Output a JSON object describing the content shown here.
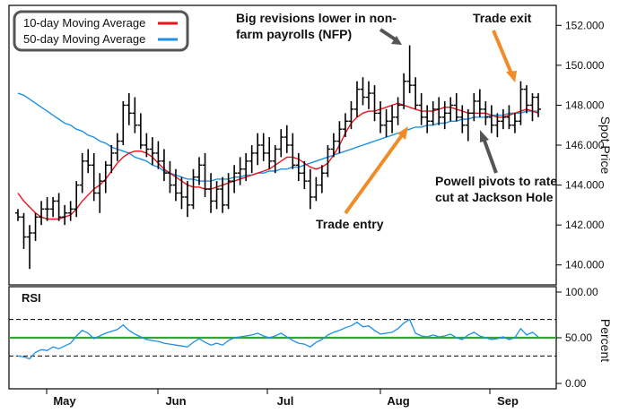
{
  "chart_data": [
    {
      "type": "ohlc",
      "ylabel": "Spot Price",
      "ylim": [
        139,
        153
      ],
      "yticks": [
        140,
        142,
        144,
        146,
        148,
        150,
        152
      ],
      "ytick_labels": [
        "140.000",
        "142.000",
        "144.000",
        "146.000",
        "148.000",
        "150.000",
        "152.000"
      ],
      "x_months": [
        "May",
        "Jun",
        "Jul",
        "Aug",
        "Sep"
      ],
      "legend": [
        {
          "label": "10-day Moving Average",
          "color": "#e8141c"
        },
        {
          "label": "50-day Moving Average",
          "color": "#1e90e8"
        }
      ],
      "legend_position": "top-left",
      "bar_color": "#000000",
      "series_ohlc": [
        [
          142.6,
          142.8,
          142.2,
          142.4
        ],
        [
          142.4,
          142.6,
          140.8,
          141.4
        ],
        [
          141.4,
          142.0,
          139.8,
          141.6
        ],
        [
          141.6,
          142.6,
          141.2,
          142.4
        ],
        [
          142.4,
          143.2,
          142.0,
          142.8
        ],
        [
          142.8,
          143.4,
          142.2,
          142.8
        ],
        [
          142.8,
          143.4,
          142.4,
          143.2
        ],
        [
          143.2,
          143.6,
          142.2,
          142.4
        ],
        [
          142.4,
          143.0,
          142.0,
          142.6
        ],
        [
          142.6,
          143.2,
          142.2,
          142.8
        ],
        [
          142.8,
          144.2,
          142.4,
          144.0
        ],
        [
          144.0,
          145.6,
          143.6,
          145.2
        ],
        [
          145.2,
          145.8,
          144.6,
          145.0
        ],
        [
          145.0,
          145.6,
          143.2,
          143.6
        ],
        [
          143.6,
          144.6,
          142.6,
          144.2
        ],
        [
          144.2,
          145.2,
          143.6,
          145.0
        ],
        [
          145.0,
          146.0,
          144.6,
          145.6
        ],
        [
          145.6,
          146.6,
          145.2,
          146.2
        ],
        [
          146.2,
          148.2,
          146.0,
          148.0
        ],
        [
          148.0,
          148.6,
          147.0,
          147.6
        ],
        [
          147.6,
          148.4,
          146.6,
          147.0
        ],
        [
          147.0,
          147.6,
          145.8,
          146.0
        ],
        [
          146.0,
          146.6,
          145.4,
          145.8
        ],
        [
          145.8,
          146.4,
          145.0,
          145.6
        ],
        [
          145.6,
          146.2,
          144.8,
          145.2
        ],
        [
          145.2,
          145.8,
          144.2,
          144.6
        ],
        [
          144.6,
          145.2,
          143.6,
          144.0
        ],
        [
          144.0,
          144.8,
          143.2,
          143.6
        ],
        [
          143.6,
          144.4,
          142.8,
          143.4
        ],
        [
          143.4,
          144.2,
          142.4,
          143.0
        ],
        [
          143.0,
          144.8,
          142.8,
          144.4
        ],
        [
          144.4,
          145.4,
          144.0,
          145.0
        ],
        [
          145.0,
          145.6,
          143.4,
          143.8
        ],
        [
          143.8,
          144.6,
          142.6,
          143.2
        ],
        [
          143.2,
          144.2,
          142.8,
          143.8
        ],
        [
          143.8,
          144.4,
          142.6,
          143.0
        ],
        [
          143.0,
          144.6,
          142.8,
          144.2
        ],
        [
          144.2,
          145.0,
          143.6,
          144.6
        ],
        [
          144.6,
          145.4,
          144.0,
          144.8
        ],
        [
          144.8,
          145.6,
          144.2,
          145.2
        ],
        [
          145.2,
          146.0,
          144.6,
          145.6
        ],
        [
          145.6,
          146.6,
          145.0,
          146.0
        ],
        [
          146.0,
          146.6,
          145.2,
          145.6
        ],
        [
          145.6,
          146.4,
          144.8,
          145.2
        ],
        [
          145.2,
          146.0,
          144.6,
          145.8
        ],
        [
          145.8,
          146.8,
          145.4,
          146.4
        ],
        [
          146.4,
          147.0,
          145.6,
          146.0
        ],
        [
          146.0,
          146.6,
          144.8,
          145.0
        ],
        [
          145.0,
          145.6,
          144.2,
          144.6
        ],
        [
          144.6,
          145.2,
          143.8,
          144.2
        ],
        [
          144.2,
          144.8,
          142.8,
          143.4
        ],
        [
          143.4,
          144.4,
          143.2,
          144.0
        ],
        [
          144.0,
          145.0,
          143.6,
          144.6
        ],
        [
          144.6,
          146.0,
          144.4,
          145.8
        ],
        [
          145.8,
          146.6,
          145.4,
          146.2
        ],
        [
          146.2,
          147.2,
          145.6,
          146.8
        ],
        [
          146.8,
          147.6,
          146.4,
          147.2
        ],
        [
          147.2,
          148.2,
          146.8,
          147.8
        ],
        [
          147.8,
          149.2,
          147.4,
          148.8
        ],
        [
          148.8,
          149.4,
          148.0,
          148.4
        ],
        [
          148.4,
          149.2,
          147.8,
          148.6
        ],
        [
          148.6,
          149.0,
          147.2,
          147.6
        ],
        [
          147.6,
          148.2,
          146.6,
          147.0
        ],
        [
          147.0,
          147.8,
          146.4,
          147.2
        ],
        [
          147.2,
          148.0,
          146.6,
          147.4
        ],
        [
          147.4,
          148.4,
          147.0,
          148.0
        ],
        [
          148.0,
          149.6,
          147.8,
          149.2
        ],
        [
          149.2,
          151.0,
          148.6,
          149.0
        ],
        [
          149.0,
          149.4,
          147.8,
          148.0
        ],
        [
          148.0,
          148.6,
          147.0,
          147.4
        ],
        [
          147.4,
          148.0,
          146.6,
          147.2
        ],
        [
          147.2,
          148.2,
          147.0,
          147.8
        ],
        [
          147.8,
          148.4,
          147.0,
          147.4
        ],
        [
          147.4,
          148.2,
          146.8,
          147.6
        ],
        [
          147.6,
          148.4,
          147.2,
          148.0
        ],
        [
          148.0,
          148.6,
          147.2,
          147.4
        ],
        [
          147.4,
          148.0,
          146.6,
          147.0
        ],
        [
          147.0,
          147.8,
          146.2,
          147.6
        ],
        [
          147.6,
          148.6,
          147.2,
          148.2
        ],
        [
          148.2,
          148.8,
          147.4,
          147.8
        ],
        [
          147.8,
          148.2,
          147.0,
          147.4
        ],
        [
          147.4,
          148.0,
          146.6,
          147.0
        ],
        [
          147.0,
          147.6,
          146.4,
          147.2
        ],
        [
          147.2,
          147.8,
          146.8,
          147.4
        ],
        [
          147.4,
          148.0,
          146.8,
          147.0
        ],
        [
          147.0,
          147.6,
          146.6,
          147.2
        ],
        [
          147.2,
          149.2,
          147.0,
          148.8
        ],
        [
          148.8,
          149.0,
          147.6,
          148.0
        ],
        [
          148.0,
          148.6,
          147.2,
          148.4
        ],
        [
          148.4,
          148.6,
          147.4,
          147.8
        ]
      ],
      "ma10": [
        143.6,
        143.2,
        142.9,
        142.6,
        142.4,
        142.3,
        142.3,
        142.3,
        142.4,
        142.5,
        142.8,
        143.2,
        143.5,
        143.8,
        144.0,
        144.3,
        144.7,
        145.1,
        145.4,
        145.6,
        145.7,
        145.7,
        145.6,
        145.4,
        145.1,
        144.8,
        144.6,
        144.4,
        144.2,
        144.0,
        143.9,
        143.9,
        143.8,
        143.8,
        143.9,
        144.0,
        144.1,
        144.2,
        144.3,
        144.4,
        144.5,
        144.6,
        144.7,
        144.8,
        145.0,
        145.2,
        145.4,
        145.4,
        145.3,
        145.1,
        144.9,
        144.8,
        144.9,
        145.1,
        145.5,
        146.0,
        146.6,
        147.1,
        147.4,
        147.6,
        147.7,
        147.7,
        147.8,
        147.9,
        148.0,
        148.1,
        148.0,
        147.9,
        147.8,
        147.7,
        147.7,
        147.7,
        147.8,
        147.9,
        147.9,
        147.8,
        147.7,
        147.6,
        147.6,
        147.6,
        147.6,
        147.5,
        147.4,
        147.4,
        147.5,
        147.6,
        147.7,
        147.8,
        147.7,
        147.6
      ],
      "ma50": [
        148.6,
        148.5,
        148.3,
        148.1,
        147.9,
        147.7,
        147.5,
        147.3,
        147.1,
        147.0,
        146.8,
        146.7,
        146.5,
        146.4,
        146.2,
        146.1,
        145.9,
        145.8,
        145.7,
        145.6,
        145.4,
        145.3,
        145.2,
        145.0,
        144.9,
        144.7,
        144.6,
        144.5,
        144.4,
        144.3,
        144.3,
        144.2,
        144.2,
        144.2,
        144.3,
        144.3,
        144.3,
        144.4,
        144.4,
        144.5,
        144.5,
        144.6,
        144.6,
        144.7,
        144.7,
        144.8,
        144.8,
        144.9,
        144.9,
        145.0,
        145.1,
        145.2,
        145.3,
        145.4,
        145.5,
        145.6,
        145.7,
        145.8,
        145.9,
        146.0,
        146.1,
        146.2,
        146.3,
        146.4,
        146.5,
        146.6,
        146.7,
        146.8,
        146.9,
        146.9,
        147.0,
        147.0,
        147.1,
        147.1,
        147.2,
        147.2,
        147.3,
        147.3,
        147.4,
        147.4,
        147.4,
        147.5,
        147.5,
        147.5,
        147.6,
        147.6,
        147.6,
        147.7,
        147.7,
        147.7
      ],
      "annotations": [
        {
          "text_lines": [
            "Big revisions lower in non-",
            "farm payrolls (NFP)"
          ],
          "arrow_color": "#555555"
        },
        {
          "text_lines": [
            "Trade exit"
          ],
          "arrow_color": "#f08c28"
        },
        {
          "text_lines": [
            "Trade entry"
          ],
          "arrow_color": "#f08c28"
        },
        {
          "text_lines": [
            "Powell pivots to rate",
            "cut at Jackson Hole"
          ],
          "arrow_color": "#555555"
        }
      ]
    },
    {
      "type": "line",
      "title": "RSI",
      "ylabel": "Percent",
      "ylim": [
        0,
        100
      ],
      "yticks": [
        0,
        50,
        100
      ],
      "ytick_labels": [
        "0.00",
        "50.00",
        "100.00"
      ],
      "reference_lines": [
        {
          "value": 70,
          "style": "dashed",
          "color": "#000000"
        },
        {
          "value": 30,
          "style": "dashed",
          "color": "#000000"
        },
        {
          "value": 50,
          "style": "solid",
          "color": "#3aa03a"
        }
      ],
      "series": [
        {
          "color": "#1e90e8",
          "values": [
            30,
            29,
            27,
            34,
            37,
            36,
            40,
            38,
            41,
            44,
            52,
            58,
            55,
            49,
            52,
            55,
            57,
            59,
            64,
            58,
            54,
            51,
            48,
            47,
            46,
            44,
            43,
            42,
            41,
            40,
            45,
            49,
            45,
            42,
            44,
            42,
            47,
            50,
            51,
            52,
            53,
            55,
            52,
            50,
            52,
            55,
            51,
            47,
            44,
            43,
            40,
            45,
            48,
            53,
            56,
            58,
            61,
            63,
            67,
            62,
            63,
            58,
            54,
            55,
            56,
            60,
            66,
            70,
            55,
            52,
            51,
            53,
            51,
            52,
            54,
            50,
            48,
            53,
            56,
            52,
            50,
            48,
            49,
            51,
            48,
            50,
            60,
            53,
            56,
            51
          ]
        }
      ]
    }
  ]
}
